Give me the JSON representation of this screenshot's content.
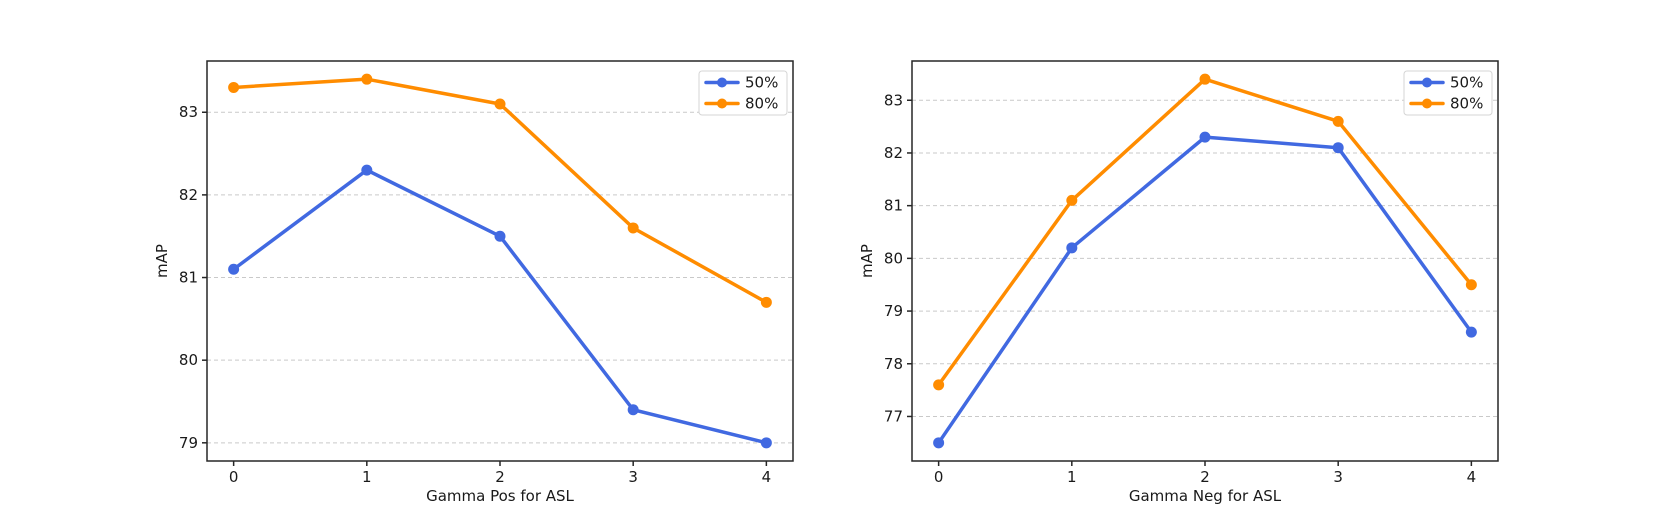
{
  "colors": {
    "background": "#ffffff",
    "series_blue": "#4169e1",
    "series_orange": "#ff8c00",
    "grid": "#c9c9c9",
    "frame": "#262626",
    "legend_border": "#d5d5d5",
    "legend_background": "#ffffff",
    "text": "#1a1a1a"
  },
  "chart_data": [
    {
      "type": "line",
      "title": "",
      "xlabel": "Gamma Pos for ASL",
      "ylabel": "mAP",
      "x": [
        0,
        1,
        2,
        3,
        4
      ],
      "xticks": [
        0,
        1,
        2,
        3,
        4
      ],
      "yticks": [
        79,
        80,
        81,
        82,
        83
      ],
      "xlim": [
        -0.2,
        4.2
      ],
      "ylim": [
        78.78,
        83.62
      ],
      "grid": "horizontal-dashed",
      "legend_position": "upper-right",
      "series": [
        {
          "name": "50%",
          "color": "#4169e1",
          "values": [
            81.1,
            82.3,
            81.5,
            79.4,
            79.0
          ]
        },
        {
          "name": "80%",
          "color": "#ff8c00",
          "values": [
            83.3,
            83.4,
            83.1,
            81.6,
            80.7
          ]
        }
      ]
    },
    {
      "type": "line",
      "title": "",
      "xlabel": "Gamma Neg for ASL",
      "ylabel": "mAP",
      "x": [
        0,
        1,
        2,
        3,
        4
      ],
      "xticks": [
        0,
        1,
        2,
        3,
        4
      ],
      "yticks": [
        77,
        78,
        79,
        80,
        81,
        82,
        83
      ],
      "xlim": [
        -0.2,
        4.2
      ],
      "ylim": [
        76.155,
        83.745
      ],
      "grid": "horizontal-dashed",
      "legend_position": "upper-right",
      "series": [
        {
          "name": "50%",
          "color": "#4169e1",
          "values": [
            76.5,
            80.2,
            82.3,
            82.1,
            78.6
          ]
        },
        {
          "name": "80%",
          "color": "#ff8c00",
          "values": [
            77.6,
            81.1,
            83.4,
            82.6,
            79.5
          ]
        }
      ]
    }
  ]
}
